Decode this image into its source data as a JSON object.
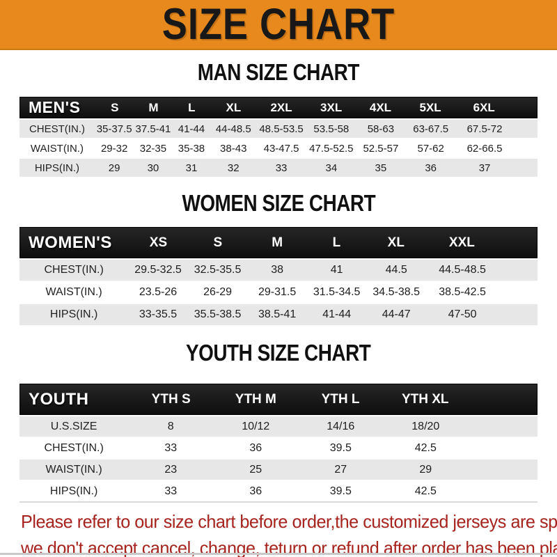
{
  "banner": {
    "title": "SIZE CHART",
    "bg_color": "#e8891e",
    "text_color": "#181818"
  },
  "sections": [
    {
      "heading": "MAN SIZE CHART",
      "header_label": "MEN'S",
      "columns": [
        "S",
        "M",
        "L",
        "XL",
        "2XL",
        "3XL",
        "4XL",
        "5XL",
        "6XL"
      ],
      "rows": [
        {
          "label": "CHEST(IN.)",
          "values": [
            "35-37.5",
            "37.5-41",
            "41-44",
            "44-48.5",
            "48.5-53.5",
            "53.5-58",
            "58-63",
            "63-67.5",
            "67.5-72"
          ]
        },
        {
          "label": "WAIST(IN.)",
          "values": [
            "29-32",
            "32-35",
            "35-38",
            "38-43",
            "43-47.5",
            "47.5-52.5",
            "52.5-57",
            "57-62",
            "62-66.5"
          ]
        },
        {
          "label": "HIPS(IN.)",
          "values": [
            "29",
            "30",
            "31",
            "32",
            "33",
            "34",
            "35",
            "36",
            "37"
          ]
        }
      ]
    },
    {
      "heading": "WOMEN SIZE CHART",
      "header_label": "WOMEN'S",
      "columns": [
        "XS",
        "S",
        "M",
        "L",
        "XL",
        "XXL"
      ],
      "rows": [
        {
          "label": "CHEST(IN.)",
          "values": [
            "29.5-32.5",
            "32.5-35.5",
            "38",
            "41",
            "44.5",
            "44.5-48.5"
          ]
        },
        {
          "label": "WAIST(IN.)",
          "values": [
            "23.5-26",
            "26-29",
            "29-31.5",
            "31.5-34.5",
            "34.5-38.5",
            "38.5-42.5"
          ]
        },
        {
          "label": "HIPS(IN.)",
          "values": [
            "33-35.5",
            "35.5-38.5",
            "38.5-41",
            "41-44",
            "44-47",
            "47-50"
          ]
        }
      ]
    },
    {
      "heading": "YOUTH SIZE CHART",
      "header_label": "YOUTH",
      "columns": [
        "YTH S",
        "YTH M",
        "YTH L",
        "YTH XL"
      ],
      "rows": [
        {
          "label": "U.S.SIZE",
          "values": [
            "8",
            "10/12",
            "14/16",
            "18/20"
          ]
        },
        {
          "label": "CHEST(IN.)",
          "values": [
            "33",
            "36",
            "39.5",
            "42.5"
          ]
        },
        {
          "label": "WAIST(IN.)",
          "values": [
            "23",
            "25",
            "27",
            "29"
          ]
        },
        {
          "label": "HIPS(IN.)",
          "values": [
            "33",
            "36",
            "39.5",
            "42.5"
          ]
        }
      ]
    }
  ],
  "footer": {
    "line1": "Please refer to our size chart before order,the customized jerseys are special products,",
    "line2": "we don't accept cancel, change, teturn or refund after order has been placed!",
    "text_color": "#a6231e"
  },
  "table_colors": {
    "header_bar_bg": "#141414",
    "header_bar_text": "#ffffff",
    "stripe_gray": "#e7e7e7",
    "stripe_white": "#ffffff"
  }
}
